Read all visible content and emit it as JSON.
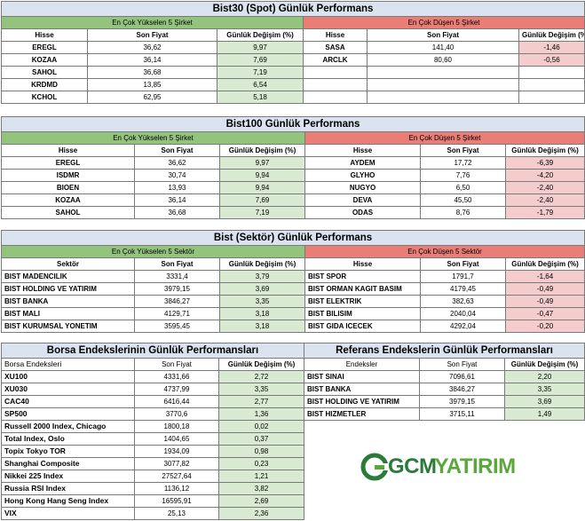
{
  "bist30": {
    "title": "Bist30 (Spot) Günlük Performans",
    "left_header": "En Çok Yükselen 5 Şirket",
    "right_header": "En Çok Düşen 5 Şirket",
    "cols": [
      "Hisse",
      "Son Fiyat",
      "Günlük Değişim (%)"
    ],
    "gainers": [
      [
        "EREGL",
        "36,62",
        "9,97"
      ],
      [
        "KOZAA",
        "36,14",
        "7,69"
      ],
      [
        "SAHOL",
        "36,68",
        "7,19"
      ],
      [
        "KRDMD",
        "13,85",
        "6,54"
      ],
      [
        "KCHOL",
        "62,95",
        "5,18"
      ]
    ],
    "losers": [
      [
        "SASA",
        "141,40",
        "-1,46"
      ],
      [
        "ARCLK",
        "80,60",
        "-0,56"
      ],
      [
        "",
        "",
        ""
      ],
      [
        "",
        "",
        ""
      ],
      [
        "",
        "",
        ""
      ]
    ]
  },
  "bist100": {
    "title": "Bist100 Günlük Performans",
    "left_header": "En Çok Yükselen 5 Şirket",
    "right_header": "En Çok Düşen 5 Şirket",
    "cols": [
      "Hisse",
      "Son Fiyat",
      "Günlük Değişim (%)"
    ],
    "gainers": [
      [
        "EREGL",
        "36,62",
        "9,97"
      ],
      [
        "ISDMR",
        "30,74",
        "9,94"
      ],
      [
        "BIOEN",
        "13,93",
        "9,94"
      ],
      [
        "KOZAA",
        "36,14",
        "7,69"
      ],
      [
        "SAHOL",
        "36,68",
        "7,19"
      ]
    ],
    "losers": [
      [
        "AYDEM",
        "17,72",
        "-6,39"
      ],
      [
        "GLYHO",
        "7,76",
        "-4,20"
      ],
      [
        "NUGYO",
        "6,50",
        "-2,40"
      ],
      [
        "DEVA",
        "45,50",
        "-2,40"
      ],
      [
        "ODAS",
        "8,76",
        "-1,79"
      ]
    ]
  },
  "sector": {
    "title": "Bist (Sektör) Günlük Performans",
    "left_header": "En Çok Yükselen 5 Sektör",
    "right_header": "En Çok Düşen 5 Sektör",
    "left_cols": [
      "Sektör",
      "Son Fiyat",
      "Günlük Değişim (%)"
    ],
    "right_cols": [
      "Hisse",
      "Son Fiyat",
      "Günlük Değişim (%)"
    ],
    "gainers": [
      [
        "BIST MADENCILIK",
        "3331,4",
        "3,79"
      ],
      [
        "BIST HOLDING VE YATIRIM",
        "3979,15",
        "3,69"
      ],
      [
        "BIST BANKA",
        "3846,27",
        "3,35"
      ],
      [
        "BIST MALI",
        "4129,71",
        "3,18"
      ],
      [
        "BIST KURUMSAL YONETIM",
        "3595,45",
        "3,18"
      ]
    ],
    "losers": [
      [
        "BIST SPOR",
        "1791,7",
        "-1,64"
      ],
      [
        "BIST ORMAN KAGIT BASIM",
        "4179,45",
        "-0,49"
      ],
      [
        "BIST ELEKTRIK",
        "382,63",
        "-0,49"
      ],
      [
        "BIST BILISIM",
        "2040,04",
        "-0,47"
      ],
      [
        "BIST GIDA ICECEK",
        "4292,04",
        "-0,20"
      ]
    ]
  },
  "borsa": {
    "title": "Borsa Endekslerinin Günlük Performansları",
    "cols": [
      "Borsa Endeksleri",
      "Son Fiyat",
      "Günlük Değişim (%)"
    ],
    "rows": [
      [
        "XU100",
        "4331,66",
        "2,72"
      ],
      [
        "XU030",
        "4737,99",
        "3,35"
      ],
      [
        "CAC40",
        "6416,44",
        "2,77"
      ],
      [
        "SP500",
        "3770,6",
        "1,36"
      ],
      [
        "Russell 2000 Index, Chicago",
        "1800,18",
        "0,02"
      ],
      [
        "Total Index, Oslo",
        "1404,65",
        "0,37"
      ],
      [
        "Topix Tokyo TOR",
        "1934,09",
        "0,98"
      ],
      [
        "Shanghai Composite",
        "3077,82",
        "0,23"
      ],
      [
        "Nikkei 225 Index",
        "27527,64",
        "1,21"
      ],
      [
        "Russia RSI Index",
        "1136,12",
        "3,82"
      ],
      [
        "Hong Kong Hang Seng Index",
        "16595,91",
        "2,69"
      ],
      [
        "VIX",
        "25,13",
        "2,36"
      ]
    ]
  },
  "referans": {
    "title": "Referans Endekslerin  Günlük Performansları",
    "cols": [
      "Endeksler",
      "Son Fiyat",
      "Günlük Değişim (%)"
    ],
    "rows": [
      [
        "BIST SINAI",
        "7096,61",
        "2,20"
      ],
      [
        "BIST BANKA",
        "3846,27",
        "3,35"
      ],
      [
        "BIST HOLDING VE YATIRIM",
        "3979,15",
        "3,69"
      ],
      [
        "BIST HIZMETLER",
        "3715,11",
        "1,49"
      ]
    ]
  },
  "logo": {
    "text_a": "GCM",
    "text_b": "YATIRIM",
    "color_dark": "#2b7a3a",
    "color_light": "#5aa83c"
  }
}
